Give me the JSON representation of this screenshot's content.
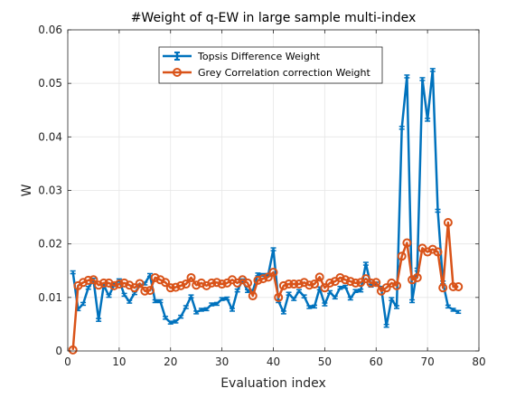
{
  "chart_data": {
    "type": "line",
    "title": "#Weight of q-EW in large sample multi-index",
    "xlabel": "Evaluation index",
    "ylabel": "W",
    "xlim": [
      0,
      80
    ],
    "ylim": [
      0,
      0.06
    ],
    "x_ticks": [
      "0",
      "10",
      "20",
      "30",
      "40",
      "50",
      "60",
      "70",
      "80"
    ],
    "y_ticks": [
      "0",
      "0.01",
      "0.02",
      "0.03",
      "0.04",
      "0.05",
      "0.06"
    ],
    "grid": true,
    "legend_position": "top-center",
    "series": [
      {
        "name": "Topsis Difference Weight",
        "color": "#0072BD",
        "marker": "errorbar",
        "x": [
          1,
          2,
          3,
          4,
          5,
          6,
          7,
          8,
          9,
          10,
          11,
          12,
          13,
          14,
          15,
          16,
          17,
          18,
          19,
          20,
          21,
          22,
          23,
          24,
          25,
          26,
          27,
          28,
          29,
          30,
          31,
          32,
          33,
          34,
          35,
          36,
          37,
          38,
          39,
          40,
          41,
          42,
          43,
          44,
          45,
          46,
          47,
          48,
          49,
          50,
          51,
          52,
          53,
          54,
          55,
          56,
          57,
          58,
          59,
          60,
          61,
          62,
          63,
          64,
          65,
          66,
          67,
          68,
          69,
          70,
          71,
          72,
          73,
          74,
          75,
          76
        ],
        "values": [
          0.0147,
          0.0078,
          0.0088,
          0.0118,
          0.0133,
          0.0058,
          0.0123,
          0.0103,
          0.0123,
          0.0132,
          0.0105,
          0.0092,
          0.0108,
          0.0122,
          0.0126,
          0.0142,
          0.0093,
          0.0093,
          0.0062,
          0.0053,
          0.0055,
          0.0064,
          0.0082,
          0.0102,
          0.0072,
          0.0077,
          0.0078,
          0.0087,
          0.0088,
          0.0097,
          0.0098,
          0.0077,
          0.0113,
          0.0132,
          0.0112,
          0.0112,
          0.0143,
          0.0142,
          0.0142,
          0.019,
          0.0093,
          0.0072,
          0.0107,
          0.0097,
          0.0112,
          0.0102,
          0.0082,
          0.0083,
          0.0117,
          0.0087,
          0.011,
          0.01,
          0.0118,
          0.012,
          0.0098,
          0.0112,
          0.0113,
          0.0163,
          0.0122,
          0.0126,
          0.0118,
          0.0047,
          0.0097,
          0.0082,
          0.0417,
          0.0513,
          0.0093,
          0.0152,
          0.0508,
          0.0432,
          0.0525,
          0.0262,
          0.0128,
          0.0083,
          0.0077,
          0.0073
        ]
      },
      {
        "name": "Grey Correlation correction Weight",
        "color": "#D95319",
        "marker": "circle",
        "x": [
          1,
          2,
          3,
          4,
          5,
          6,
          7,
          8,
          9,
          10,
          11,
          12,
          13,
          14,
          15,
          16,
          17,
          18,
          19,
          20,
          21,
          22,
          23,
          24,
          25,
          26,
          27,
          28,
          29,
          30,
          31,
          32,
          33,
          34,
          35,
          36,
          37,
          38,
          39,
          40,
          41,
          42,
          43,
          44,
          45,
          46,
          47,
          48,
          49,
          50,
          51,
          52,
          53,
          54,
          55,
          56,
          57,
          58,
          59,
          60,
          61,
          62,
          63,
          64,
          65,
          66,
          67,
          68,
          69,
          70,
          71,
          72,
          73,
          74,
          75,
          76
        ],
        "values": [
          0.0002,
          0.0122,
          0.0128,
          0.0132,
          0.0133,
          0.0123,
          0.0127,
          0.0127,
          0.0122,
          0.0125,
          0.0127,
          0.0123,
          0.0118,
          0.0126,
          0.0112,
          0.0113,
          0.0137,
          0.0133,
          0.0128,
          0.0118,
          0.0119,
          0.0122,
          0.0125,
          0.0137,
          0.0123,
          0.0127,
          0.0122,
          0.0127,
          0.0128,
          0.0125,
          0.0127,
          0.0133,
          0.0127,
          0.0133,
          0.0127,
          0.0103,
          0.0132,
          0.0135,
          0.0138,
          0.0147,
          0.01,
          0.0122,
          0.0125,
          0.0125,
          0.0125,
          0.0128,
          0.0123,
          0.0125,
          0.0138,
          0.0118,
          0.0127,
          0.013,
          0.0137,
          0.0133,
          0.013,
          0.0127,
          0.0128,
          0.0135,
          0.0127,
          0.0128,
          0.0112,
          0.0118,
          0.0127,
          0.0122,
          0.0177,
          0.0202,
          0.0133,
          0.0137,
          0.0192,
          0.0185,
          0.019,
          0.0185,
          0.0118,
          0.024,
          0.012,
          0.012
        ]
      }
    ]
  }
}
